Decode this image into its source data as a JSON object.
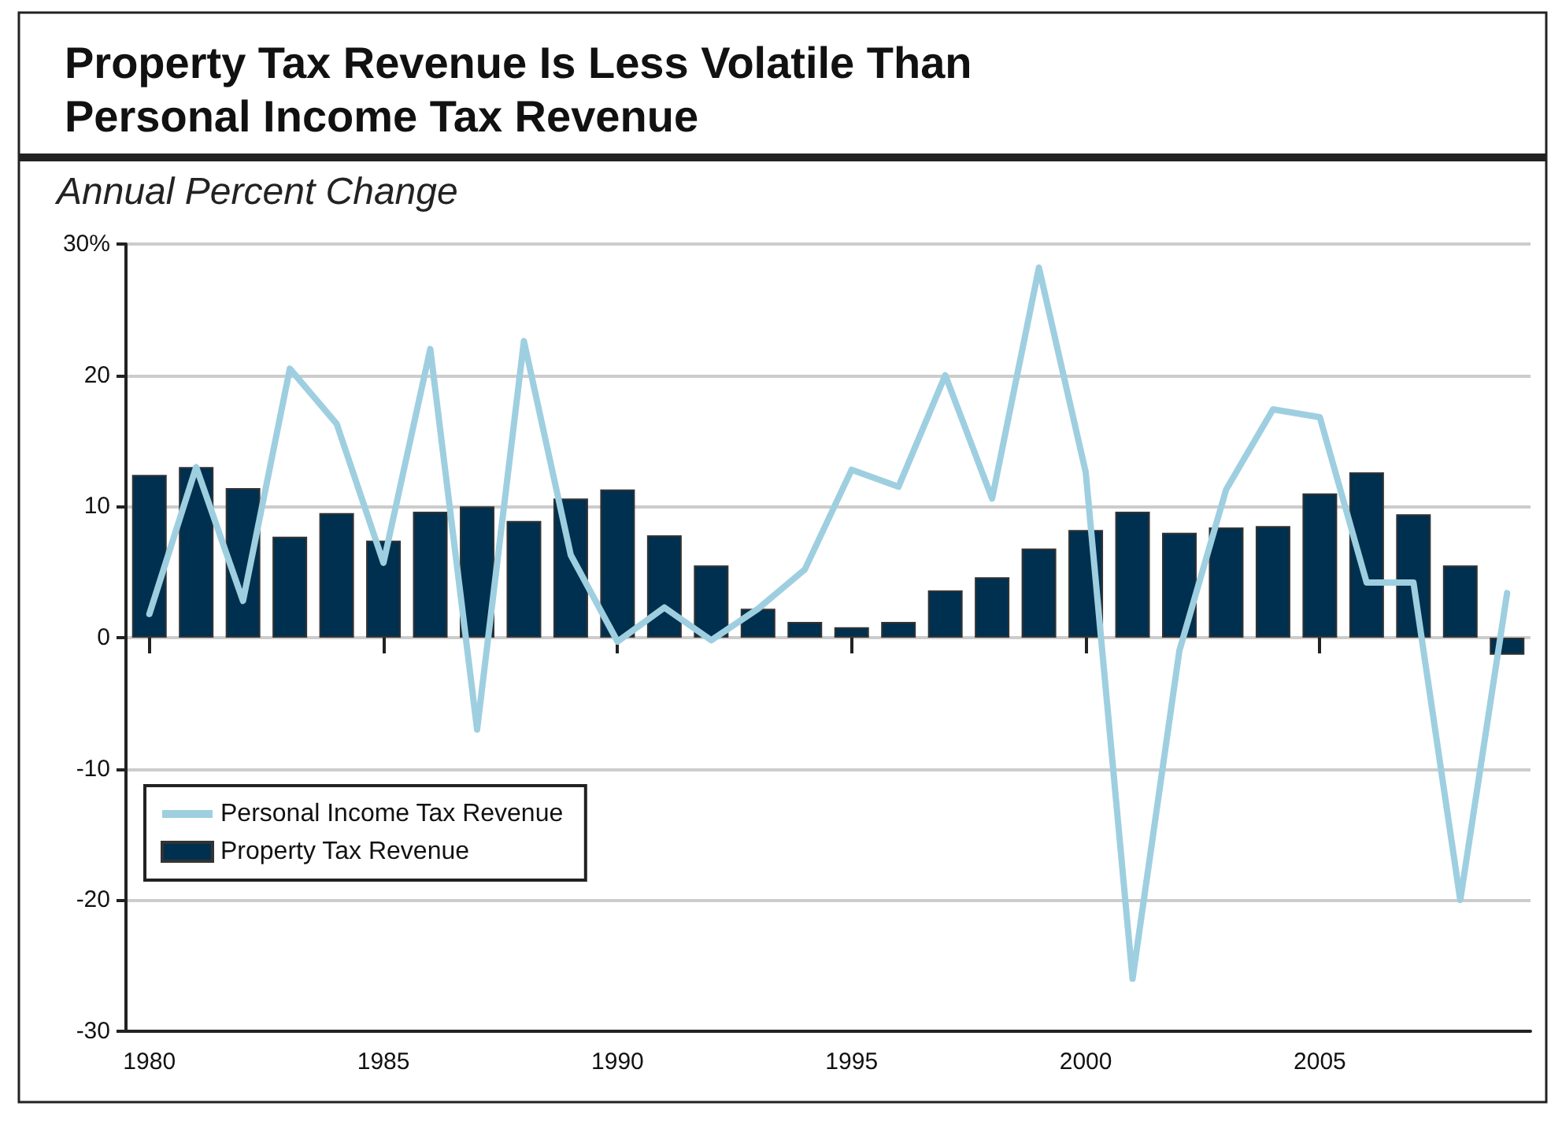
{
  "chart_data": {
    "type": "bar",
    "title": "Property Tax Revenue Is Less Volatile Than Personal Income Tax Revenue",
    "ylabel": "Annual Percent Change",
    "categories": [
      "1980",
      null,
      null,
      null,
      null,
      "1985",
      null,
      null,
      null,
      null,
      "1990",
      null,
      null,
      null,
      null,
      "1995",
      null,
      null,
      null,
      null,
      "2000",
      null,
      null,
      null,
      null,
      "2005",
      null,
      null,
      null,
      null
    ],
    "series": [
      {
        "name": "Personal Income Tax Revenue",
        "type": "line",
        "color": "#9ecfe0",
        "marker": "none",
        "line_style": "solid",
        "values": [
          1.8,
          13,
          2.8,
          20.5,
          16.3,
          5.7,
          22,
          -7,
          22.6,
          6.3,
          -0.3,
          2.3,
          -0.2,
          2.2,
          5.2,
          12.8,
          11.5,
          20,
          10.6,
          28.2,
          12.6,
          -26,
          -1,
          11.3,
          17.4,
          16.8,
          4.2,
          4.2,
          -20,
          3.4
        ]
      },
      {
        "name": "Property Tax Revenue",
        "color": "#00304f",
        "values": [
          12.4,
          13,
          11.4,
          7.7,
          9.5,
          7.4,
          9.6,
          10,
          8.9,
          10.6,
          11.3,
          7.8,
          5.5,
          2.2,
          1.2,
          0.8,
          1.2,
          3.6,
          4.6,
          6.8,
          8.2,
          9.6,
          8,
          8.4,
          8.5,
          11,
          12.6,
          9.4,
          5.5,
          -1.3
        ]
      }
    ],
    "ylim": [
      -30,
      30
    ],
    "yticks": [
      -30,
      -20,
      -10,
      0,
      10,
      20,
      {
        "value": 30,
        "label": "30%"
      }
    ],
    "grid": "y",
    "legend": "bottom left"
  }
}
